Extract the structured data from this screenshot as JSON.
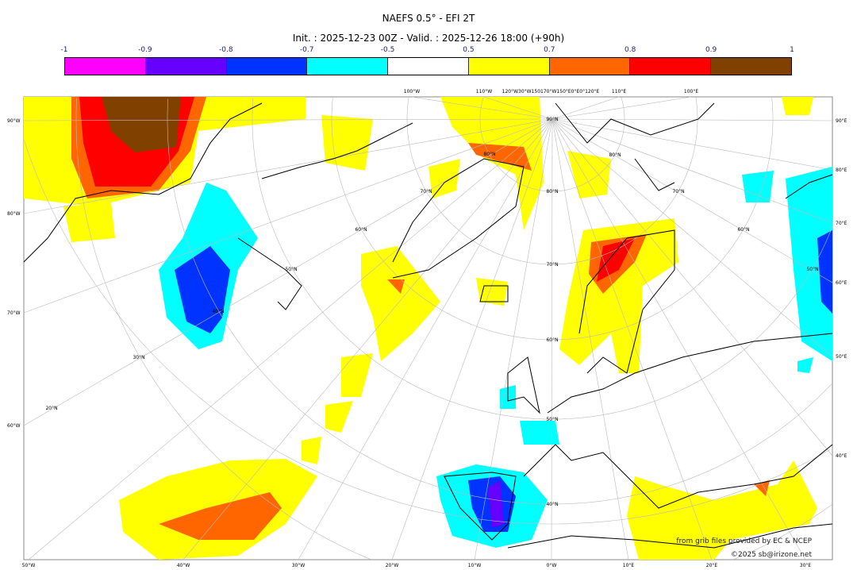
{
  "title": "NAEFS 0.5° - EFI 2T",
  "subtitle": "Init. : 2025-12-23 00Z - Valid. : 2025-12-26 18:00 (+90h)",
  "colorbar": {
    "ticks": [
      "-1",
      "-0.9",
      "-0.8",
      "-0.7",
      "-0.5",
      "0.5",
      "0.7",
      "0.8",
      "0.9",
      "1"
    ],
    "colors": [
      "#ff00ff",
      "#6600ff",
      "#0033ff",
      "#00ffff",
      "#ffffff",
      "#ffff00",
      "#ff6600",
      "#ff0000",
      "#804000"
    ]
  },
  "graticule": {
    "left": [
      "90°W",
      "80°W",
      "70°W",
      "60°W"
    ],
    "right": [
      "90°E",
      "80°E",
      "70°E",
      "60°E",
      "50°E",
      "40°E"
    ],
    "bottom": [
      "50°W",
      "40°W",
      "30°W",
      "20°W",
      "10°W",
      "0°W",
      "10°E",
      "20°E",
      "30°E"
    ],
    "top": [
      "100°W",
      "110°W",
      "120°W30°W150170°W150°E0°E0°120°E",
      "110°E",
      "100°E"
    ],
    "lat": [
      "20°N",
      "30°N",
      "40°N",
      "50°N",
      "60°N",
      "70°N",
      "80°N",
      "90°N",
      "80°N",
      "70°N",
      "60°N",
      "50°N",
      "40°N",
      "80°N",
      "70°N",
      "60°N",
      "50°N"
    ]
  },
  "credits": {
    "source": "from grib files provided by EC & NCEP",
    "copyright": "©2025 sb@irizone.net"
  }
}
